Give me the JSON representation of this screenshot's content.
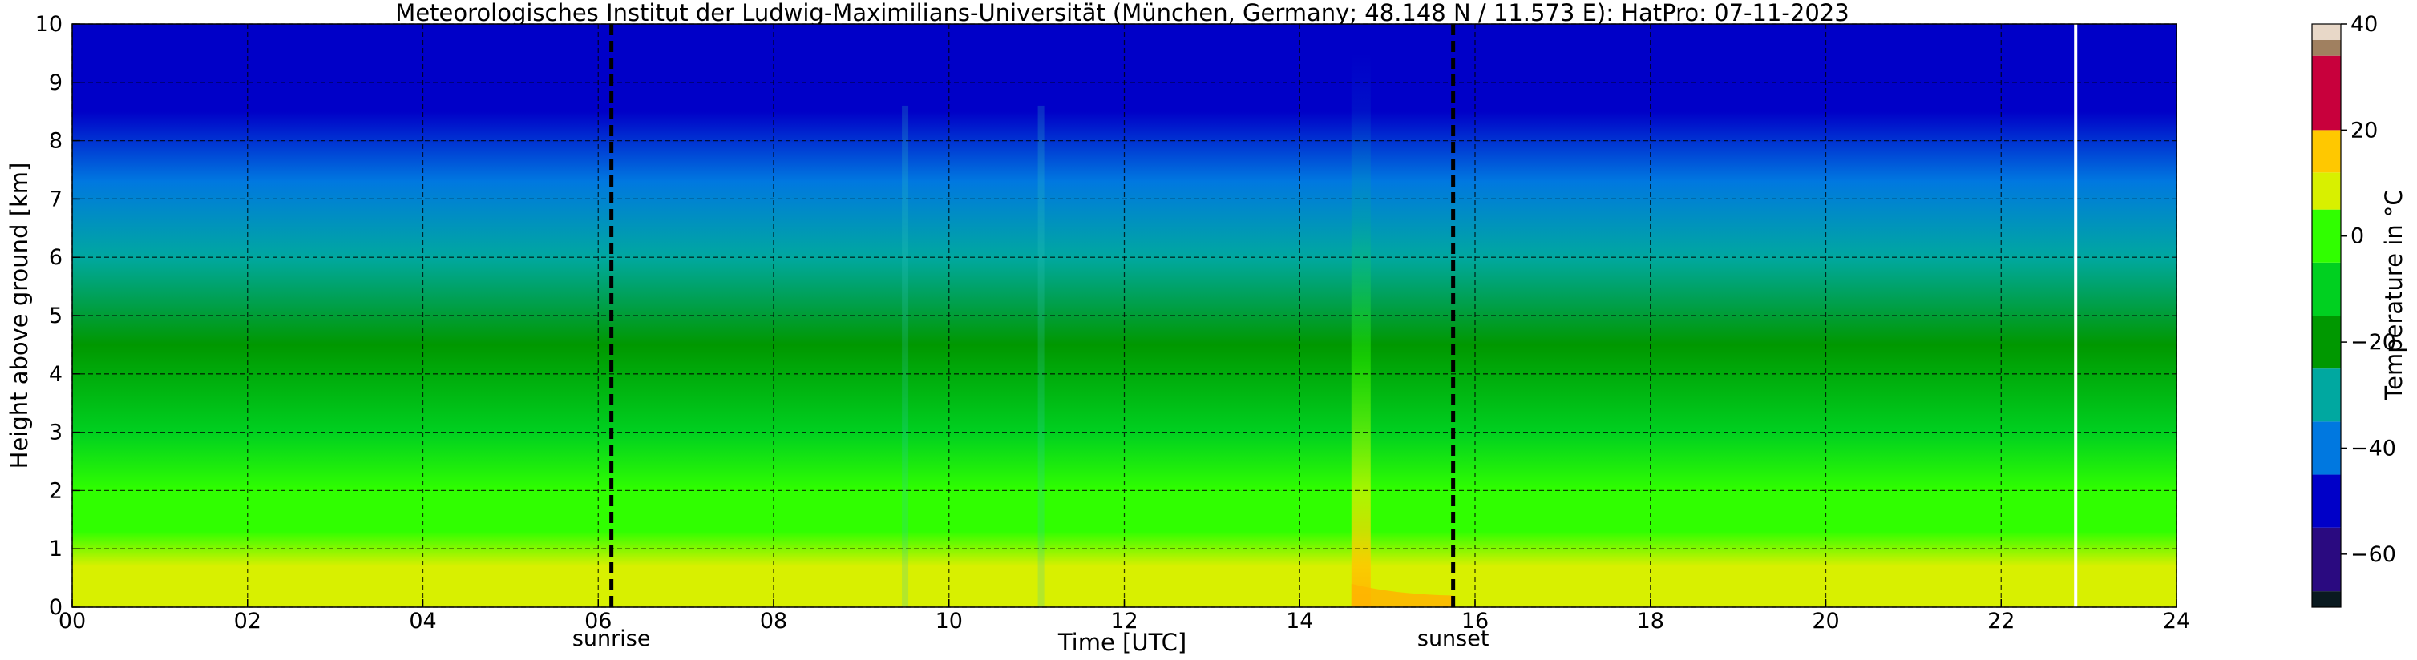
{
  "chart_data": {
    "type": "heatmap",
    "title": "Meteorologisches Institut der Ludwig-Maximilians-Universität (München, Germany; 48.148 N / 11.573 E):    HatPro: 07-11-2023",
    "xlabel": "Time [UTC]",
    "ylabel": "Height above ground [km]",
    "xlim": [
      0,
      24
    ],
    "ylim": [
      0,
      10
    ],
    "x_ticks": [
      "00",
      "02",
      "04",
      "06",
      "08",
      "10",
      "12",
      "14",
      "16",
      "18",
      "20",
      "22",
      "24"
    ],
    "y_ticks": [
      "0",
      "1",
      "2",
      "3",
      "4",
      "5",
      "6",
      "7",
      "8",
      "9",
      "10"
    ],
    "grid": true,
    "colorbar": {
      "label": "Temperature in °C",
      "range": [
        -70,
        40
      ],
      "ticks": [
        "40",
        "20",
        "0",
        "−20",
        "−40",
        "−60"
      ],
      "bands": [
        {
          "from": -70,
          "to": -67,
          "color": "#0a1a20"
        },
        {
          "from": -67,
          "to": -55,
          "color": "#2a0a80"
        },
        {
          "from": -55,
          "to": -45,
          "color": "#0000c8"
        },
        {
          "from": -45,
          "to": -35,
          "color": "#0078e0"
        },
        {
          "from": -35,
          "to": -25,
          "color": "#00a8a0"
        },
        {
          "from": -25,
          "to": -15,
          "color": "#009800"
        },
        {
          "from": -15,
          "to": -5,
          "color": "#00d020"
        },
        {
          "from": -5,
          "to": 5,
          "color": "#30ff00"
        },
        {
          "from": 5,
          "to": 12,
          "color": "#d8f000"
        },
        {
          "from": 12,
          "to": 20,
          "color": "#ffc800"
        },
        {
          "from": 20,
          "to": 34,
          "color": "#c8003c"
        },
        {
          "from": 34,
          "to": 37,
          "color": "#a08060"
        },
        {
          "from": 37,
          "to": 40,
          "color": "#e8d8c8"
        }
      ]
    },
    "temperature_profile": [
      {
        "height_km": 0.0,
        "temp_c": 9
      },
      {
        "height_km": 0.7,
        "temp_c": 7
      },
      {
        "height_km": 1.3,
        "temp_c": 1
      },
      {
        "height_km": 2.0,
        "temp_c": -4
      },
      {
        "height_km": 3.0,
        "temp_c": -9
      },
      {
        "height_km": 4.5,
        "temp_c": -18
      },
      {
        "height_km": 6.0,
        "temp_c": -27
      },
      {
        "height_km": 7.3,
        "temp_c": -37
      },
      {
        "height_km": 8.5,
        "temp_c": -50
      },
      {
        "height_km": 10.0,
        "temp_c": -54
      }
    ],
    "annotations": [
      {
        "label": "sunrise",
        "x": 6.15,
        "style": "dashed"
      },
      {
        "label": "sunset",
        "x": 15.75,
        "style": "dashed"
      }
    ],
    "data_gaps": [
      {
        "x": 22.85
      }
    ],
    "events": [
      {
        "x": 14.7,
        "note": "warm plume extending to ~9.5 km"
      },
      {
        "x": 9.5,
        "note": "minor plume"
      },
      {
        "x": 11.05,
        "note": "minor plume"
      }
    ]
  }
}
